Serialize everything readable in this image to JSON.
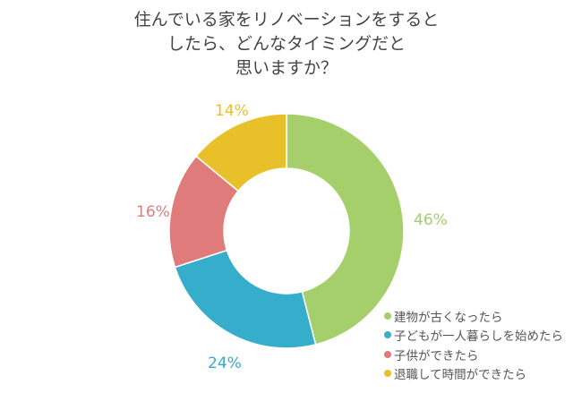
{
  "title": {
    "lines": [
      "住んでいる家をリノベーションをすると",
      "したら、どんなタイミングだと",
      "思いますか？"
    ]
  },
  "chart_data": {
    "type": "pie",
    "variant": "donut",
    "title": "住んでいる家をリノベーションをするとしたら、どんなタイミングだと思いますか？",
    "categories": [
      "建物が古くなったら",
      "子どもが一人暮らしを始めたら",
      "子供ができたら",
      "退職して時間ができたら"
    ],
    "values": [
      46,
      24,
      16,
      14
    ],
    "unit": "%",
    "labels": [
      "46%",
      "24%",
      "16%",
      "14%"
    ],
    "colors": [
      "#A5CF6A",
      "#36ADCB",
      "#E07B7B",
      "#E8C12A"
    ],
    "start_angle": "12 o'clock",
    "direction": "clockwise",
    "legend_position": "bottom-right"
  },
  "legend": {
    "items": [
      {
        "label": "建物が古くなったら",
        "color": "#A5CF6A"
      },
      {
        "label": "子どもが一人暮らしを始めたら",
        "color": "#36ADCB"
      },
      {
        "label": "子供ができたら",
        "color": "#E07B7B"
      },
      {
        "label": "退職して時間ができたら",
        "color": "#E8C12A"
      }
    ]
  },
  "pct_labels": [
    {
      "text": "46%",
      "color": "#A5CF6A"
    },
    {
      "text": "24%",
      "color": "#36ADCB"
    },
    {
      "text": "16%",
      "color": "#E07B7B"
    },
    {
      "text": "14%",
      "color": "#E8C12A"
    }
  ]
}
